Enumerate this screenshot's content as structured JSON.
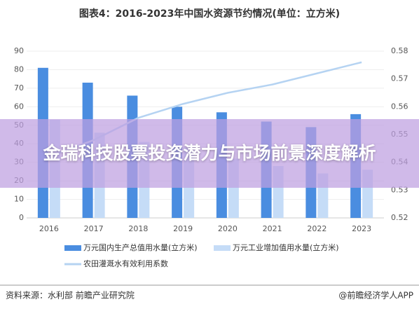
{
  "chart_data": {
    "type": "bar",
    "title": "图表4：2016-2023年中国水资源节约情况(单位：立方米)",
    "categories": [
      "2016",
      "2017",
      "2018",
      "2019",
      "2020",
      "2021",
      "2022",
      "2023"
    ],
    "series": [
      {
        "name": "万元国内生产总值用水量(立方米)",
        "color": "#4a8de0",
        "values": [
          81,
          73,
          66,
          60,
          57,
          52,
          49,
          56
        ]
      },
      {
        "name": "万元工业增加值用水量(立方米)",
        "color": "#c5dcf7",
        "values": [
          53,
          46,
          41,
          38,
          32,
          28,
          24,
          26
        ]
      },
      {
        "name": "农田灌溉水有效利用系数",
        "color": "#b5d3f2",
        "type": "line",
        "axis": "y2",
        "values": [
          0.542,
          0.548,
          0.556,
          0.561,
          0.565,
          0.568,
          0.572,
          0.576
        ]
      }
    ],
    "ylim": [
      0,
      90
    ],
    "yticks": [
      0,
      10,
      20,
      30,
      40,
      50,
      60,
      70,
      80,
      90
    ],
    "y2lim": [
      0.52,
      0.58
    ],
    "y2ticks": [
      0.52,
      0.53,
      0.54,
      0.55,
      0.56,
      0.57,
      0.58
    ],
    "grid": true
  },
  "banner": {
    "title": "金瑞科技股票投资潜力与市场前景深度解析"
  },
  "footer": {
    "source": "资料来源：水利部 前瞻产业研究院",
    "brand": "@前瞻经济学人APP"
  }
}
